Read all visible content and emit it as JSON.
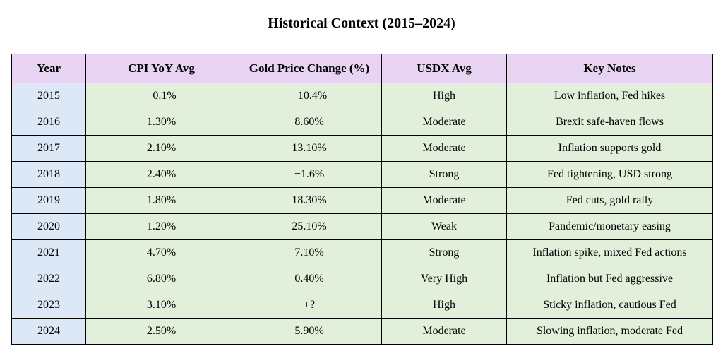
{
  "title": "Historical Context (2015–2024)",
  "colors": {
    "header_bg": "#e8d4f2",
    "year_bg": "#dce8f5",
    "body_bg": "#e2efda",
    "border": "#000000"
  },
  "table": {
    "columns": [
      "Year",
      "CPI YoY Avg",
      "Gold Price Change (%)",
      "USDX Avg",
      "Key Notes"
    ],
    "rows": [
      [
        "2015",
        "−0.1%",
        "−10.4%",
        "High",
        "Low inflation, Fed hikes"
      ],
      [
        "2016",
        "1.30%",
        "8.60%",
        "Moderate",
        "Brexit safe‑haven flows"
      ],
      [
        "2017",
        "2.10%",
        "13.10%",
        "Moderate",
        "Inflation supports gold"
      ],
      [
        "2018",
        "2.40%",
        "−1.6%",
        "Strong",
        "Fed tightening, USD strong"
      ],
      [
        "2019",
        "1.80%",
        "18.30%",
        "Moderate",
        "Fed cuts, gold rally"
      ],
      [
        "2020",
        "1.20%",
        "25.10%",
        "Weak",
        "Pandemic/monetary easing"
      ],
      [
        "2021",
        "4.70%",
        "7.10%",
        "Strong",
        "Inflation spike, mixed Fed actions"
      ],
      [
        "2022",
        "6.80%",
        "0.40%",
        "Very High",
        "Inflation but Fed aggressive"
      ],
      [
        "2023",
        "3.10%",
        "+?",
        "High",
        "Sticky inflation, cautious Fed"
      ],
      [
        "2024",
        "2.50%",
        "5.90%",
        "Moderate",
        "Slowing inflation, moderate Fed"
      ]
    ]
  }
}
